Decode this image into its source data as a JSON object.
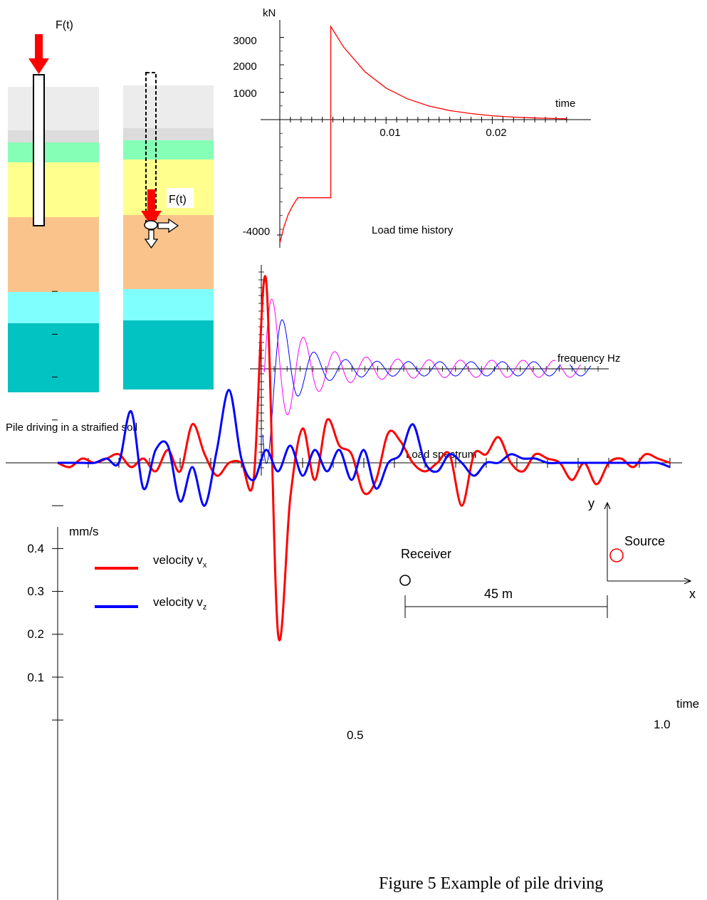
{
  "pile_diagram": {
    "force_label_left": "F(t)",
    "force_label_right": "F(t)",
    "caption": "Pile driving in a straified soil",
    "layer_colors": [
      "#ececec",
      "#dcdcdc",
      "#86ffb6",
      "#ffff8e",
      "#fbc38c",
      "#80ffff",
      "#02c2c2"
    ],
    "arrow_color": "#ff0000"
  },
  "load_time_chart": {
    "y_unit": "kN",
    "x_label": "time",
    "caption": "Load time history",
    "y_tick_labels": [
      "3000",
      "2000",
      "1000",
      "-4000"
    ],
    "x_tick_labels": [
      "0.01",
      "0.02"
    ],
    "color": "#ff0000"
  },
  "load_spectrum_chart": {
    "x_label": "frequency Hz",
    "caption": "Load spectrum",
    "colors": [
      "#ff00ff",
      "#0000ff"
    ]
  },
  "velocity_chart": {
    "y_unit": "mm/s",
    "x_label": "time",
    "y_tick_labels": [
      "0.4",
      "0.3",
      "0.2",
      "0.1"
    ],
    "x_tick_labels": [
      "0.5",
      "1.0"
    ],
    "legend": [
      {
        "text": "velocity v",
        "sub": "x",
        "color": "#ff0000"
      },
      {
        "text": "velocity v",
        "sub": "z",
        "color": "#0000ff"
      }
    ]
  },
  "geometry_inset": {
    "receiver_label": "Receiver",
    "source_label": "Source",
    "distance_label": "45 m",
    "axis_x": "x",
    "axis_y": "y"
  },
  "figure_caption": "Figure 5 Example of pile driving",
  "chart_data": [
    {
      "type": "line",
      "title": "Load time history",
      "xlabel": "time",
      "ylabel": "kN",
      "xlim": [
        0,
        0.027
      ],
      "ylim": [
        -4500,
        3500
      ],
      "series": [
        {
          "values_xy": [
            [
              0,
              -4500
            ],
            [
              0.0004,
              -3900
            ],
            [
              0.0008,
              -3450
            ],
            [
              0.0012,
              -3150
            ],
            [
              0.0016,
              -2900
            ],
            [
              0.0017,
              -2850
            ],
            [
              0.0048,
              -2850
            ],
            [
              0.0048,
              3400
            ],
            [
              0.006,
              2650
            ],
            [
              0.008,
              1750
            ],
            [
              0.01,
              1150
            ],
            [
              0.012,
              760
            ],
            [
              0.014,
              500
            ],
            [
              0.016,
              330
            ],
            [
              0.018,
              220
            ],
            [
              0.02,
              140
            ],
            [
              0.022,
              90
            ],
            [
              0.024,
              60
            ],
            [
              0.027,
              30
            ]
          ]
        }
      ]
    },
    {
      "type": "line",
      "title": "Load spectrum",
      "xlabel": "frequency Hz",
      "series": [
        {
          "color": "#ff00ff"
        },
        {
          "color": "#0000ff"
        }
      ]
    },
    {
      "type": "line",
      "xlabel": "time",
      "ylabel": "mm/s",
      "xlim": [
        0,
        1.0
      ],
      "ylim": [
        -0.5,
        0.45
      ],
      "series": [
        {
          "name": "velocity v_x",
          "color": "#ff0000",
          "x": [
            0,
            0.02,
            0.04,
            0.06,
            0.08,
            0.1,
            0.12,
            0.14,
            0.16,
            0.18,
            0.2,
            0.22,
            0.24,
            0.26,
            0.28,
            0.3,
            0.32,
            0.34,
            0.36,
            0.38,
            0.4,
            0.42,
            0.44,
            0.46,
            0.48,
            0.5,
            0.52,
            0.54,
            0.56,
            0.58,
            0.6,
            0.62,
            0.64,
            0.66,
            0.68,
            0.7,
            0.72,
            0.74,
            0.76,
            0.78,
            0.8,
            0.82,
            0.84,
            0.86,
            0.88,
            0.9,
            0.92,
            0.94,
            0.96,
            0.98,
            1.0
          ],
          "values": [
            0,
            -0.01,
            0.01,
            0.0,
            0.01,
            0.02,
            -0.01,
            0.01,
            -0.02,
            0.03,
            -0.02,
            0.09,
            0.02,
            -0.03,
            0.0,
            0.0,
            -0.04,
            0.43,
            -0.4,
            -0.08,
            0.08,
            -0.04,
            0.1,
            0.04,
            0.02,
            -0.07,
            -0.04,
            0.07,
            0.05,
            0.0,
            -0.02,
            0.0,
            0.02,
            -0.1,
            0.02,
            0.02,
            0.06,
            0.0,
            -0.02,
            0.02,
            0.01,
            0.0,
            -0.04,
            0.0,
            -0.05,
            0.0,
            0.01,
            -0.01,
            0.02,
            0.01,
            0.0
          ]
        },
        {
          "name": "velocity v_z",
          "color": "#0000ff",
          "x": [
            0,
            0.02,
            0.04,
            0.06,
            0.08,
            0.1,
            0.12,
            0.14,
            0.16,
            0.18,
            0.2,
            0.22,
            0.24,
            0.26,
            0.28,
            0.3,
            0.32,
            0.34,
            0.36,
            0.38,
            0.4,
            0.42,
            0.44,
            0.46,
            0.48,
            0.5,
            0.52,
            0.54,
            0.56,
            0.58,
            0.6,
            0.62,
            0.64,
            0.66,
            0.68,
            0.7,
            0.72,
            0.74,
            0.76,
            0.78,
            0.8,
            0.82,
            0.84,
            0.86,
            0.88,
            0.9,
            0.92,
            0.94,
            0.96,
            0.98,
            1.0
          ],
          "values": [
            0,
            0.0,
            0.0,
            0.0,
            0.01,
            0.0,
            0.12,
            -0.06,
            0.03,
            0.04,
            -0.09,
            -0.01,
            -0.1,
            0.03,
            0.17,
            0.01,
            -0.04,
            0.03,
            -0.02,
            0.04,
            -0.03,
            0.03,
            -0.02,
            0.03,
            -0.04,
            0.03,
            -0.06,
            0.0,
            0.02,
            0.09,
            0.0,
            -0.02,
            0.02,
            0.0,
            -0.03,
            0.0,
            0.0,
            0.02,
            0.01,
            0.01,
            0.0,
            0.0,
            0.0,
            0.0,
            0.0,
            0.0,
            0.0,
            0.0,
            0.0,
            0.0,
            -0.01
          ]
        }
      ]
    }
  ]
}
